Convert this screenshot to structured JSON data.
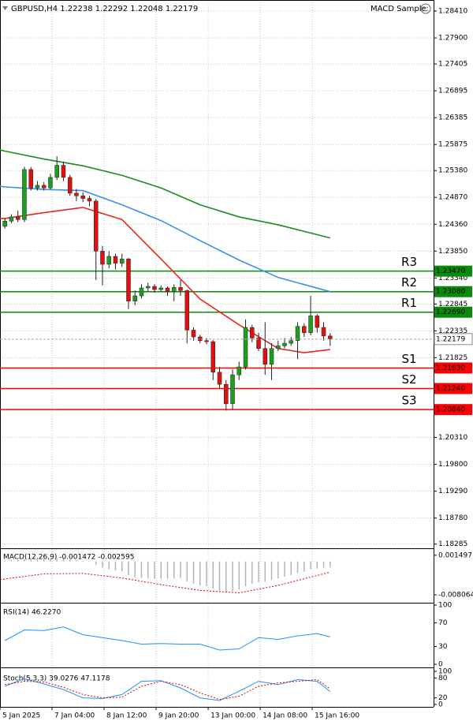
{
  "header": {
    "symbol_line": "GBPUSD,H4  1.22238 1.22292 1.22048 1.22179",
    "expert": "MACD Sample"
  },
  "chart_data": [
    {
      "type": "candlestick",
      "xlim": [
        -0.75,
        65.9
      ],
      "xticks": [
        {
          "value": -0.75,
          "label": "5 Jan 2025"
        },
        {
          "value": 7.25,
          "label": "7 Jan 04:00"
        },
        {
          "value": 15.25,
          "label": "8 Jan 12:00"
        },
        {
          "value": 23.25,
          "label": "9 Jan 20:00"
        },
        {
          "value": 31.25,
          "label": "13 Jan 00:00"
        },
        {
          "value": 39.25,
          "label": "14 Jan 08:00"
        },
        {
          "value": 47.25,
          "label": "15 Jan 16:00"
        }
      ],
      "ylim": [
        1.1822,
        1.2862
      ],
      "yticks": [
        {
          "value": 1.2841,
          "label": "1.28410"
        },
        {
          "value": 1.279,
          "label": "1.27900"
        },
        1.27405,
        1.26895,
        1.26385,
        1.25875,
        {
          "value": 1.2538,
          "label": "1.25380"
        },
        {
          "value": 1.2487,
          "label": "1.24870"
        },
        {
          "value": 1.2436,
          "label": "1.24360"
        },
        {
          "value": 1.2385,
          "label": "1.23850"
        },
        {
          "value": 1.2334,
          "label": "1.23340"
        },
        1.22845,
        1.22335,
        1.21825,
        {
          "value": 1.2031,
          "label": "1.20310"
        },
        {
          "value": 1.198,
          "label": "1.19800"
        },
        {
          "value": 1.1929,
          "label": "1.19290"
        },
        {
          "value": 1.1878,
          "label": "1.18780"
        },
        1.18285
      ],
      "grid": true,
      "up_color": "#1e9e1e",
      "down_color": "#e01010",
      "open": [
        1.2432,
        1.2442,
        1.245,
        1.2445,
        1.254,
        1.2505,
        1.251,
        1.2505,
        1.2525,
        1.2548,
        1.2525,
        1.2495,
        1.249,
        1.2485,
        1.248,
        1.2385,
        1.236,
        1.2375,
        1.2362,
        1.237,
        1.229,
        1.23,
        1.2315,
        1.2318,
        1.2312,
        1.2315,
        1.2308,
        1.2316,
        1.231,
        1.2235,
        1.2222,
        1.2215,
        1.2213,
        1.2155,
        1.2132,
        1.2095,
        1.215,
        1.2165,
        1.224,
        1.222,
        1.22,
        1.217,
        1.22,
        1.2205,
        1.221,
        1.2215,
        1.2242,
        1.223,
        1.2262,
        1.224,
        1.22238
      ],
      "high": [
        1.2447,
        1.2455,
        1.2462,
        1.2545,
        1.2545,
        1.2518,
        1.2516,
        1.2532,
        1.2565,
        1.2555,
        1.253,
        1.2503,
        1.2497,
        1.249,
        1.2484,
        1.2395,
        1.2385,
        1.238,
        1.238,
        1.2372,
        1.231,
        1.2322,
        1.2325,
        1.2322,
        1.232,
        1.2318,
        1.2322,
        1.233,
        1.2312,
        1.224,
        1.2226,
        1.222,
        1.2216,
        1.2165,
        1.214,
        1.216,
        1.2175,
        1.2255,
        1.2245,
        1.223,
        1.225,
        1.221,
        1.2215,
        1.222,
        1.2222,
        1.225,
        1.2248,
        1.23,
        1.2265,
        1.225,
        1.22292
      ],
      "low": [
        1.2428,
        1.2438,
        1.244,
        1.244,
        1.25,
        1.25,
        1.25,
        1.2502,
        1.252,
        1.2518,
        1.249,
        1.248,
        1.2478,
        1.247,
        1.233,
        1.232,
        1.2352,
        1.235,
        1.2355,
        1.2275,
        1.2282,
        1.2295,
        1.2308,
        1.2306,
        1.2308,
        1.23,
        1.229,
        1.23,
        1.221,
        1.2215,
        1.221,
        1.2208,
        1.214,
        1.2125,
        1.2082,
        1.2085,
        1.214,
        1.216,
        1.2212,
        1.2195,
        1.215,
        1.214,
        1.2195,
        1.22,
        1.2205,
        1.218,
        1.2222,
        1.2225,
        1.223,
        1.2215,
        1.22048
      ],
      "close": [
        1.2442,
        1.245,
        1.2445,
        1.254,
        1.2505,
        1.251,
        1.2505,
        1.2525,
        1.2548,
        1.2525,
        1.2495,
        1.249,
        1.2485,
        1.248,
        1.2385,
        1.236,
        1.2375,
        1.2362,
        1.237,
        1.229,
        1.23,
        1.2315,
        1.2318,
        1.2312,
        1.2315,
        1.2308,
        1.2316,
        1.231,
        1.2235,
        1.2222,
        1.2215,
        1.2213,
        1.2155,
        1.2132,
        1.2095,
        1.215,
        1.2165,
        1.224,
        1.222,
        1.22,
        1.217,
        1.22,
        1.2205,
        1.221,
        1.2215,
        1.2242,
        1.223,
        1.2262,
        1.224,
        1.22238,
        1.22179
      ],
      "series": [
        {
          "color": "#1f8a1f",
          "x": [
            -0.75,
            0,
            6,
            12,
            18,
            24,
            30,
            36,
            42,
            50
          ],
          "values": [
            1.2577,
            1.2575,
            1.256,
            1.2547,
            1.2529,
            1.2505,
            1.2473,
            1.245,
            1.2435,
            1.241
          ]
        },
        {
          "color": "#3d8fe8",
          "x": [
            -0.75,
            0,
            6,
            12,
            18,
            24,
            30,
            36,
            42,
            50
          ],
          "values": [
            1.2508,
            1.2507,
            1.2502,
            1.25,
            1.2473,
            1.2443,
            1.2405,
            1.2368,
            1.2335,
            1.2308
          ]
        },
        {
          "color": "#e8261f",
          "x": [
            -0.75,
            0,
            6,
            12,
            18,
            24,
            30,
            36,
            42,
            46,
            50
          ],
          "values": [
            1.2447,
            1.2447,
            1.2458,
            1.2468,
            1.2445,
            1.237,
            1.2294,
            1.2245,
            1.22,
            1.2192,
            1.2198
          ]
        }
      ],
      "levels": [
        {
          "name": "R3",
          "value": 1.2347,
          "value_label": "1.23470",
          "color": "#0a8a0a"
        },
        {
          "name": "R2",
          "value": 1.2308,
          "value_label": "1.23080",
          "color": "#0a8a0a"
        },
        {
          "name": "R1",
          "value": 1.2269,
          "value_label": "1.22690",
          "color": "#0a8a0a"
        },
        {
          "name": "S1",
          "value": 1.2163,
          "value_label": "1.21630",
          "color": "#ff0000"
        },
        {
          "name": "S2",
          "value": 1.2124,
          "value_label": "1.21240",
          "color": "#ff0000"
        },
        {
          "name": "S3",
          "value": 1.2084,
          "value_label": "1.20840",
          "color": "#ff0000"
        }
      ],
      "current": 1.22179
    },
    {
      "type": "bar",
      "title": "MACD(12,26,9) -0.001472 -0.002595",
      "ylim": [
        -0.0096,
        0.0028
      ],
      "yticks": [
        0.001497,
        -0.008064
      ],
      "grid": false,
      "color": "#b4b4b4",
      "values": [
        0.0002,
        0.0003,
        0.0004,
        0.0006,
        0.0007,
        0.0007,
        0.0006,
        0.0006,
        0.0007,
        0.0006,
        0.0005,
        0.0003,
        0.0002,
        0.0001,
        -0.0008,
        -0.0015,
        -0.0019,
        -0.0022,
        -0.0024,
        -0.0033,
        -0.0038,
        -0.004,
        -0.0041,
        -0.0042,
        -0.0042,
        -0.0042,
        -0.0041,
        -0.004,
        -0.0048,
        -0.0054,
        -0.0058,
        -0.006,
        -0.0066,
        -0.007,
        -0.0074,
        -0.0072,
        -0.0068,
        -0.006,
        -0.0054,
        -0.005,
        -0.0049,
        -0.0045,
        -0.0041,
        -0.0037,
        -0.0033,
        -0.0028,
        -0.0025,
        -0.0019,
        -0.0017,
        -0.0015,
        -0.001472
      ],
      "series": [
        {
          "color": "#e00000",
          "line_style": "dotted",
          "x": [
            -0.75,
            6,
            12,
            18,
            24,
            30,
            36,
            42,
            50
          ],
          "values": [
            -0.0044,
            -0.003,
            -0.0029,
            -0.004,
            -0.0056,
            -0.007,
            -0.0076,
            -0.0058,
            -0.002595
          ]
        }
      ]
    },
    {
      "type": "line",
      "title": "RSI(14) 46.2270",
      "ylim": [
        0,
        100
      ],
      "yticks": [
        100,
        70,
        30,
        0
      ],
      "grid": false,
      "series": [
        {
          "color": "#1e90ff",
          "line_style": "solid",
          "x": [
            0,
            3,
            6,
            9,
            12,
            15,
            18,
            21,
            24,
            27,
            30,
            33,
            36,
            39,
            42,
            45,
            48,
            50
          ],
          "values": [
            40,
            58,
            57,
            63,
            50,
            45,
            40,
            34,
            35,
            34,
            34,
            24,
            26,
            45,
            42,
            48,
            52,
            46.227
          ]
        }
      ]
    },
    {
      "type": "line",
      "title": "Stoch(5,3,3) 39.0276 47.1178",
      "ylim": [
        0,
        100
      ],
      "yticks": [
        100,
        80,
        20,
        0
      ],
      "grid": false,
      "series": [
        {
          "color": "#1e90ff",
          "line_style": "solid",
          "x": [
            0,
            3,
            6,
            9,
            12,
            15,
            18,
            21,
            24,
            27,
            30,
            33,
            36,
            39,
            42,
            45,
            48,
            50
          ],
          "values": [
            55,
            78,
            62,
            45,
            20,
            18,
            30,
            70,
            72,
            50,
            20,
            12,
            40,
            70,
            60,
            75,
            70,
            39.0276
          ]
        },
        {
          "color": "#e00000",
          "line_style": "dotted",
          "x": [
            0,
            3,
            6,
            9,
            12,
            15,
            18,
            21,
            24,
            27,
            30,
            33,
            36,
            39,
            42,
            45,
            48,
            50
          ],
          "values": [
            60,
            70,
            68,
            52,
            30,
            20,
            22,
            55,
            70,
            60,
            35,
            15,
            25,
            55,
            65,
            70,
            75,
            47.1178
          ]
        }
      ]
    }
  ]
}
